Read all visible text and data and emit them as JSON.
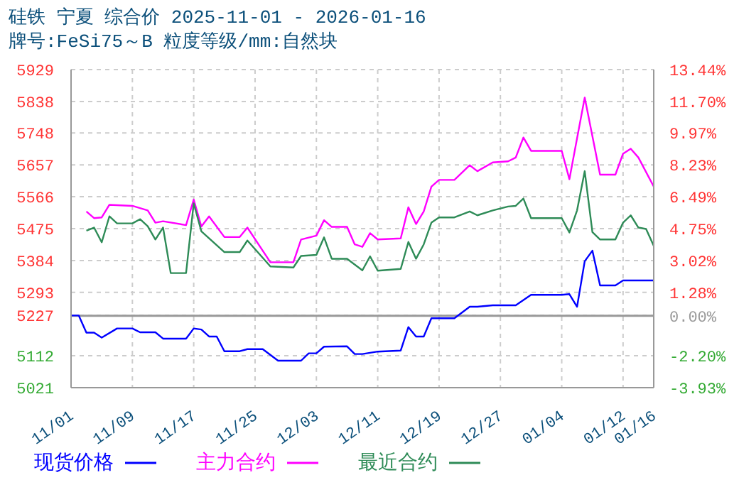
{
  "chart_data": {
    "type": "line",
    "title": "硅铁 宁夏 综合价 2025-11-01 - 2026-01-16",
    "subtitle": "牌号:FeSi75～B 粒度等级/mm:自然块",
    "xlim": [
      "2025-11-01",
      "2026-01-16"
    ],
    "xticks": [
      {
        "value": "2025-11-01",
        "label": "11/01"
      },
      {
        "value": "2025-11-09",
        "label": "11/09"
      },
      {
        "value": "2025-11-17",
        "label": "11/17"
      },
      {
        "value": "2025-11-25",
        "label": "11/25"
      },
      {
        "value": "2025-12-03",
        "label": "12/03"
      },
      {
        "value": "2025-12-11",
        "label": "12/11"
      },
      {
        "value": "2025-12-19",
        "label": "12/19"
      },
      {
        "value": "2025-12-27",
        "label": "12/27"
      },
      {
        "value": "2026-01-04",
        "label": "01/04"
      },
      {
        "value": "2026-01-12",
        "label": "01/12"
      },
      {
        "value": "2026-01-16",
        "label": "01/16"
      }
    ],
    "ylim": [
      5021,
      5929
    ],
    "yticks": [
      5021,
      5112,
      5227,
      5293,
      5384,
      5475,
      5566,
      5657,
      5748,
      5838,
      5929
    ],
    "y2lim": [
      -3.93,
      13.44
    ],
    "y2ticks": [
      {
        "value": -3.93,
        "label": "-3.93%"
      },
      {
        "value": -2.2,
        "label": "-2.20%"
      },
      {
        "value": 0,
        "label": "0.00%"
      },
      {
        "value": 1.28,
        "label": "1.28%"
      },
      {
        "value": 3.02,
        "label": "3.02%"
      },
      {
        "value": 4.75,
        "label": "4.75%"
      },
      {
        "value": 6.49,
        "label": "6.49%"
      },
      {
        "value": 8.23,
        "label": "8.23%"
      },
      {
        "value": 9.97,
        "label": "9.97%"
      },
      {
        "value": 11.7,
        "label": "11.70%"
      },
      {
        "value": 13.44,
        "label": "13.44%"
      }
    ],
    "ref_lines": [
      {
        "axis": "y2",
        "value": 0,
        "color": "#999999",
        "line_style": "solid"
      }
    ],
    "grid": true,
    "legend": "bottom",
    "marker": "none",
    "line_style": "solid",
    "series": [
      {
        "name": "现货价格",
        "color": "#0000ff",
        "x": [
          "2025-11-01",
          "2025-11-02",
          "2025-11-03",
          "2025-11-04",
          "2025-11-05",
          "2025-11-07",
          "2025-11-09",
          "2025-11-10",
          "2025-11-12",
          "2025-11-13",
          "2025-11-16",
          "2025-11-17",
          "2025-11-18",
          "2025-11-19",
          "2025-11-20",
          "2025-11-21",
          "2025-11-23",
          "2025-11-24",
          "2025-11-26",
          "2025-11-28",
          "2025-12-01",
          "2025-12-02",
          "2025-12-03",
          "2025-12-04",
          "2025-12-07",
          "2025-12-08",
          "2025-12-09",
          "2025-12-11",
          "2025-12-14",
          "2025-12-15",
          "2025-12-16",
          "2025-12-17",
          "2025-12-18",
          "2025-12-21",
          "2025-12-23",
          "2025-12-24",
          "2025-12-26",
          "2025-12-29",
          "2025-12-31",
          "2026-01-04",
          "2026-01-05",
          "2026-01-06",
          "2026-01-07",
          "2026-01-08",
          "2026-01-09",
          "2026-01-11",
          "2026-01-12",
          "2026-01-16"
        ],
        "values": [
          5227,
          5227,
          5178,
          5178,
          5164,
          5190,
          5190,
          5179,
          5179,
          5161,
          5161,
          5190,
          5187,
          5167,
          5167,
          5125,
          5125,
          5131,
          5131,
          5098,
          5098,
          5119,
          5119,
          5138,
          5139,
          5117,
          5117,
          5124,
          5127,
          5194,
          5167,
          5167,
          5219,
          5219,
          5252,
          5252,
          5256,
          5256,
          5286,
          5286,
          5288,
          5252,
          5382,
          5412,
          5313,
          5313,
          5327,
          5327
        ]
      },
      {
        "name": "主力合约",
        "color": "#ff00ff",
        "x": [
          "2025-11-03",
          "2025-11-04",
          "2025-11-05",
          "2025-11-06",
          "2025-11-09",
          "2025-11-11",
          "2025-11-12",
          "2025-11-13",
          "2025-11-16",
          "2025-11-17",
          "2025-11-18",
          "2025-11-19",
          "2025-11-21",
          "2025-11-23",
          "2025-11-24",
          "2025-11-27",
          "2025-11-30",
          "2025-12-01",
          "2025-12-03",
          "2025-12-04",
          "2025-12-05",
          "2025-12-07",
          "2025-12-08",
          "2025-12-09",
          "2025-12-10",
          "2025-12-11",
          "2025-12-14",
          "2025-12-15",
          "2025-12-16",
          "2025-12-17",
          "2025-12-18",
          "2025-12-19",
          "2025-12-21",
          "2025-12-23",
          "2025-12-24",
          "2025-12-26",
          "2025-12-28",
          "2025-12-29",
          "2025-12-30",
          "2025-12-31",
          "2026-01-04",
          "2026-01-05",
          "2026-01-06",
          "2026-01-07",
          "2026-01-09",
          "2026-01-11",
          "2026-01-12",
          "2026-01-13",
          "2026-01-14",
          "2026-01-16"
        ],
        "values": [
          5524,
          5505,
          5507,
          5543,
          5540,
          5527,
          5492,
          5496,
          5485,
          5558,
          5481,
          5510,
          5451,
          5451,
          5478,
          5379,
          5379,
          5444,
          5455,
          5499,
          5480,
          5480,
          5430,
          5423,
          5462,
          5444,
          5447,
          5536,
          5488,
          5524,
          5595,
          5614,
          5614,
          5656,
          5639,
          5664,
          5667,
          5678,
          5735,
          5697,
          5697,
          5616,
          5733,
          5849,
          5629,
          5629,
          5689,
          5703,
          5678,
          5595
        ]
      },
      {
        "name": "最近合约",
        "color": "#2e8b57",
        "x": [
          "2025-11-03",
          "2025-11-04",
          "2025-11-05",
          "2025-11-06",
          "2025-11-07",
          "2025-11-09",
          "2025-11-10",
          "2025-11-11",
          "2025-11-12",
          "2025-11-13",
          "2025-11-14",
          "2025-11-16",
          "2025-11-17",
          "2025-11-18",
          "2025-11-21",
          "2025-11-23",
          "2025-11-24",
          "2025-11-27",
          "2025-11-30",
          "2025-12-01",
          "2025-12-03",
          "2025-12-04",
          "2025-12-05",
          "2025-12-07",
          "2025-12-09",
          "2025-12-10",
          "2025-12-11",
          "2025-12-14",
          "2025-12-15",
          "2025-12-16",
          "2025-12-17",
          "2025-12-18",
          "2025-12-19",
          "2025-12-21",
          "2025-12-23",
          "2025-12-24",
          "2025-12-26",
          "2025-12-28",
          "2025-12-29",
          "2025-12-30",
          "2025-12-31",
          "2026-01-04",
          "2026-01-05",
          "2026-01-06",
          "2026-01-07",
          "2026-01-08",
          "2026-01-09",
          "2026-01-11",
          "2026-01-12",
          "2026-01-13",
          "2026-01-14",
          "2026-01-15",
          "2026-01-16"
        ],
        "values": [
          5469,
          5478,
          5436,
          5510,
          5490,
          5490,
          5502,
          5482,
          5444,
          5478,
          5348,
          5348,
          5547,
          5467,
          5408,
          5408,
          5441,
          5367,
          5364,
          5397,
          5400,
          5450,
          5389,
          5389,
          5356,
          5396,
          5355,
          5360,
          5437,
          5389,
          5430,
          5492,
          5507,
          5507,
          5524,
          5513,
          5527,
          5538,
          5540,
          5561,
          5505,
          5505,
          5464,
          5527,
          5639,
          5465,
          5444,
          5444,
          5492,
          5513,
          5478,
          5474,
          5426
        ]
      }
    ]
  }
}
